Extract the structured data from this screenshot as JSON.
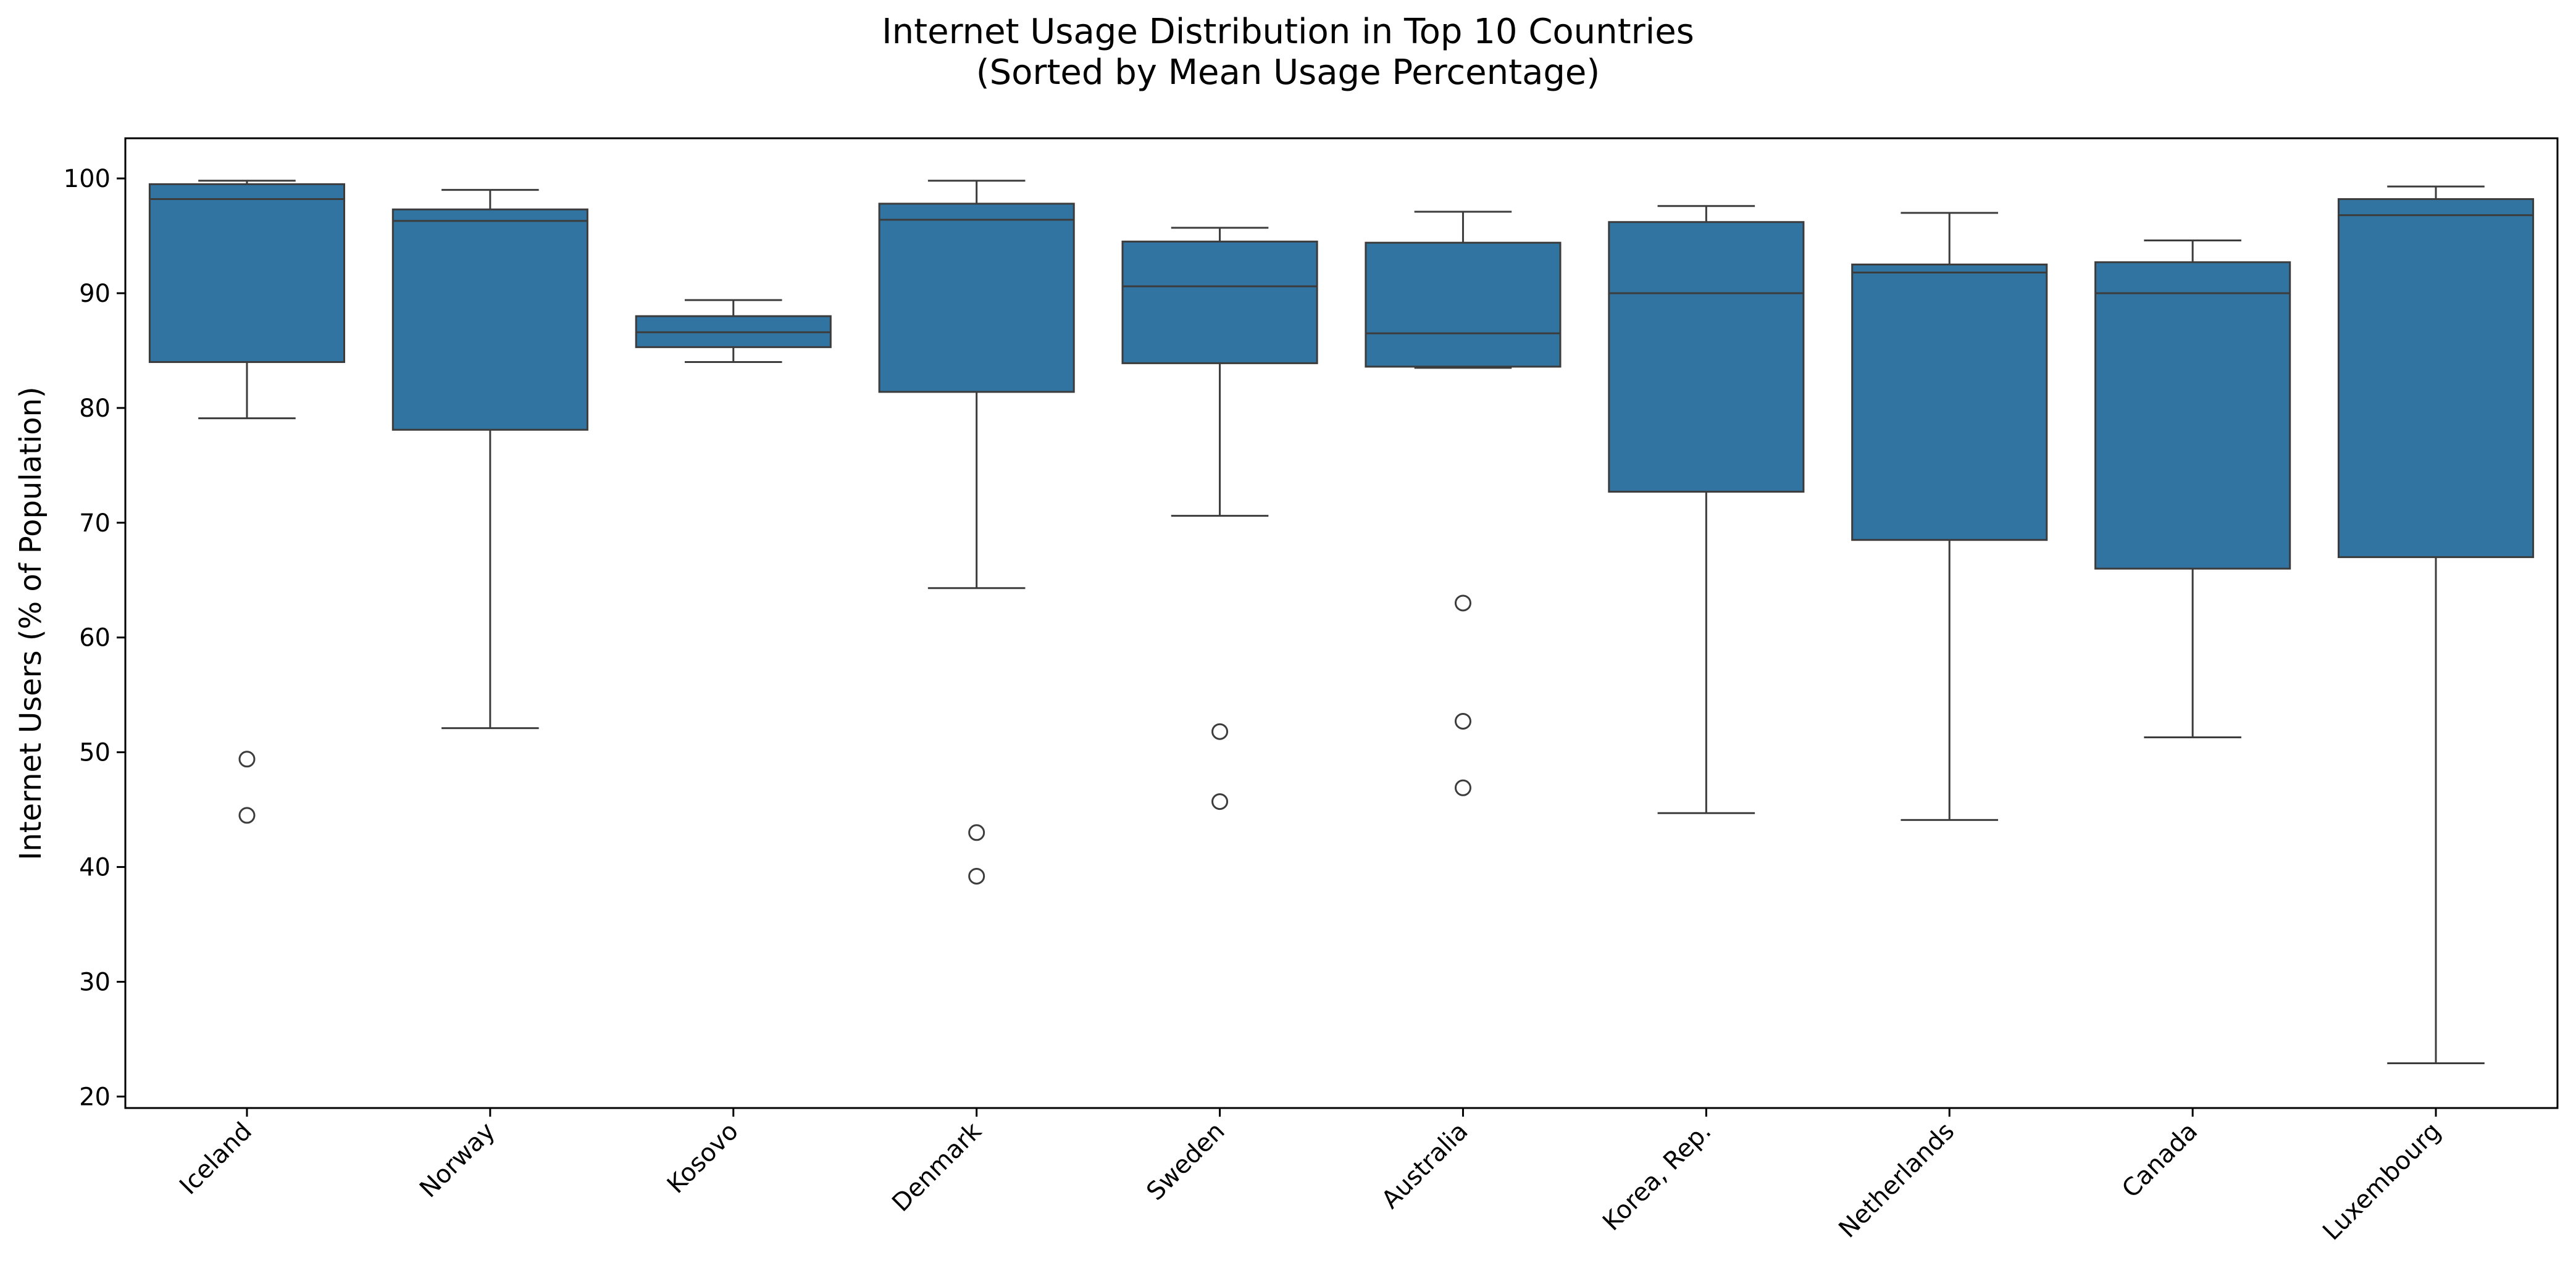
{
  "chart_data": {
    "type": "box",
    "title_lines": [
      "Internet Usage Distribution in Top 10 Countries",
      "(Sorted by Mean Usage Percentage)"
    ],
    "xlabel": "",
    "ylabel": "Internet Users (% of Population)",
    "ylim": [
      19,
      103.5
    ],
    "yticks": [
      20,
      30,
      40,
      50,
      60,
      70,
      80,
      90,
      100
    ],
    "grid": false,
    "box_color": "#3274a1",
    "line_color": "#3c3c3c",
    "categories": [
      "Iceland",
      "Norway",
      "Kosovo",
      "Denmark",
      "Sweden",
      "Australia",
      "Korea, Rep.",
      "Netherlands",
      "Canada",
      "Luxembourg"
    ],
    "boxes": [
      {
        "category": "Iceland",
        "whisker_low": 79.1,
        "q1": 84.0,
        "median": 98.2,
        "q3": 99.5,
        "whisker_high": 99.8,
        "outliers": [
          49.4,
          44.5
        ]
      },
      {
        "category": "Norway",
        "whisker_low": 52.1,
        "q1": 78.1,
        "median": 96.3,
        "q3": 97.3,
        "whisker_high": 99.0,
        "outliers": []
      },
      {
        "category": "Kosovo",
        "whisker_low": 84.0,
        "q1": 85.3,
        "median": 86.6,
        "q3": 88.0,
        "whisker_high": 89.4,
        "outliers": []
      },
      {
        "category": "Denmark",
        "whisker_low": 64.3,
        "q1": 81.4,
        "median": 96.4,
        "q3": 97.8,
        "whisker_high": 99.8,
        "outliers": [
          43.0,
          39.2
        ]
      },
      {
        "category": "Sweden",
        "whisker_low": 70.6,
        "q1": 83.9,
        "median": 90.6,
        "q3": 94.5,
        "whisker_high": 95.7,
        "outliers": [
          51.8,
          45.7
        ]
      },
      {
        "category": "Australia",
        "whisker_low": 83.5,
        "q1": 83.6,
        "median": 86.5,
        "q3": 94.4,
        "whisker_high": 97.1,
        "outliers": [
          63.0,
          52.7,
          46.9
        ]
      },
      {
        "category": "Korea, Rep.",
        "whisker_low": 44.7,
        "q1": 72.7,
        "median": 90.0,
        "q3": 96.2,
        "whisker_high": 97.6,
        "outliers": []
      },
      {
        "category": "Netherlands",
        "whisker_low": 44.1,
        "q1": 68.5,
        "median": 91.8,
        "q3": 92.5,
        "whisker_high": 97.0,
        "outliers": []
      },
      {
        "category": "Canada",
        "whisker_low": 51.3,
        "q1": 66.0,
        "median": 90.0,
        "q3": 92.7,
        "whisker_high": 94.6,
        "outliers": []
      },
      {
        "category": "Luxembourg",
        "whisker_low": 22.9,
        "q1": 67.0,
        "median": 96.8,
        "q3": 98.2,
        "whisker_high": 99.3,
        "outliers": []
      }
    ]
  }
}
